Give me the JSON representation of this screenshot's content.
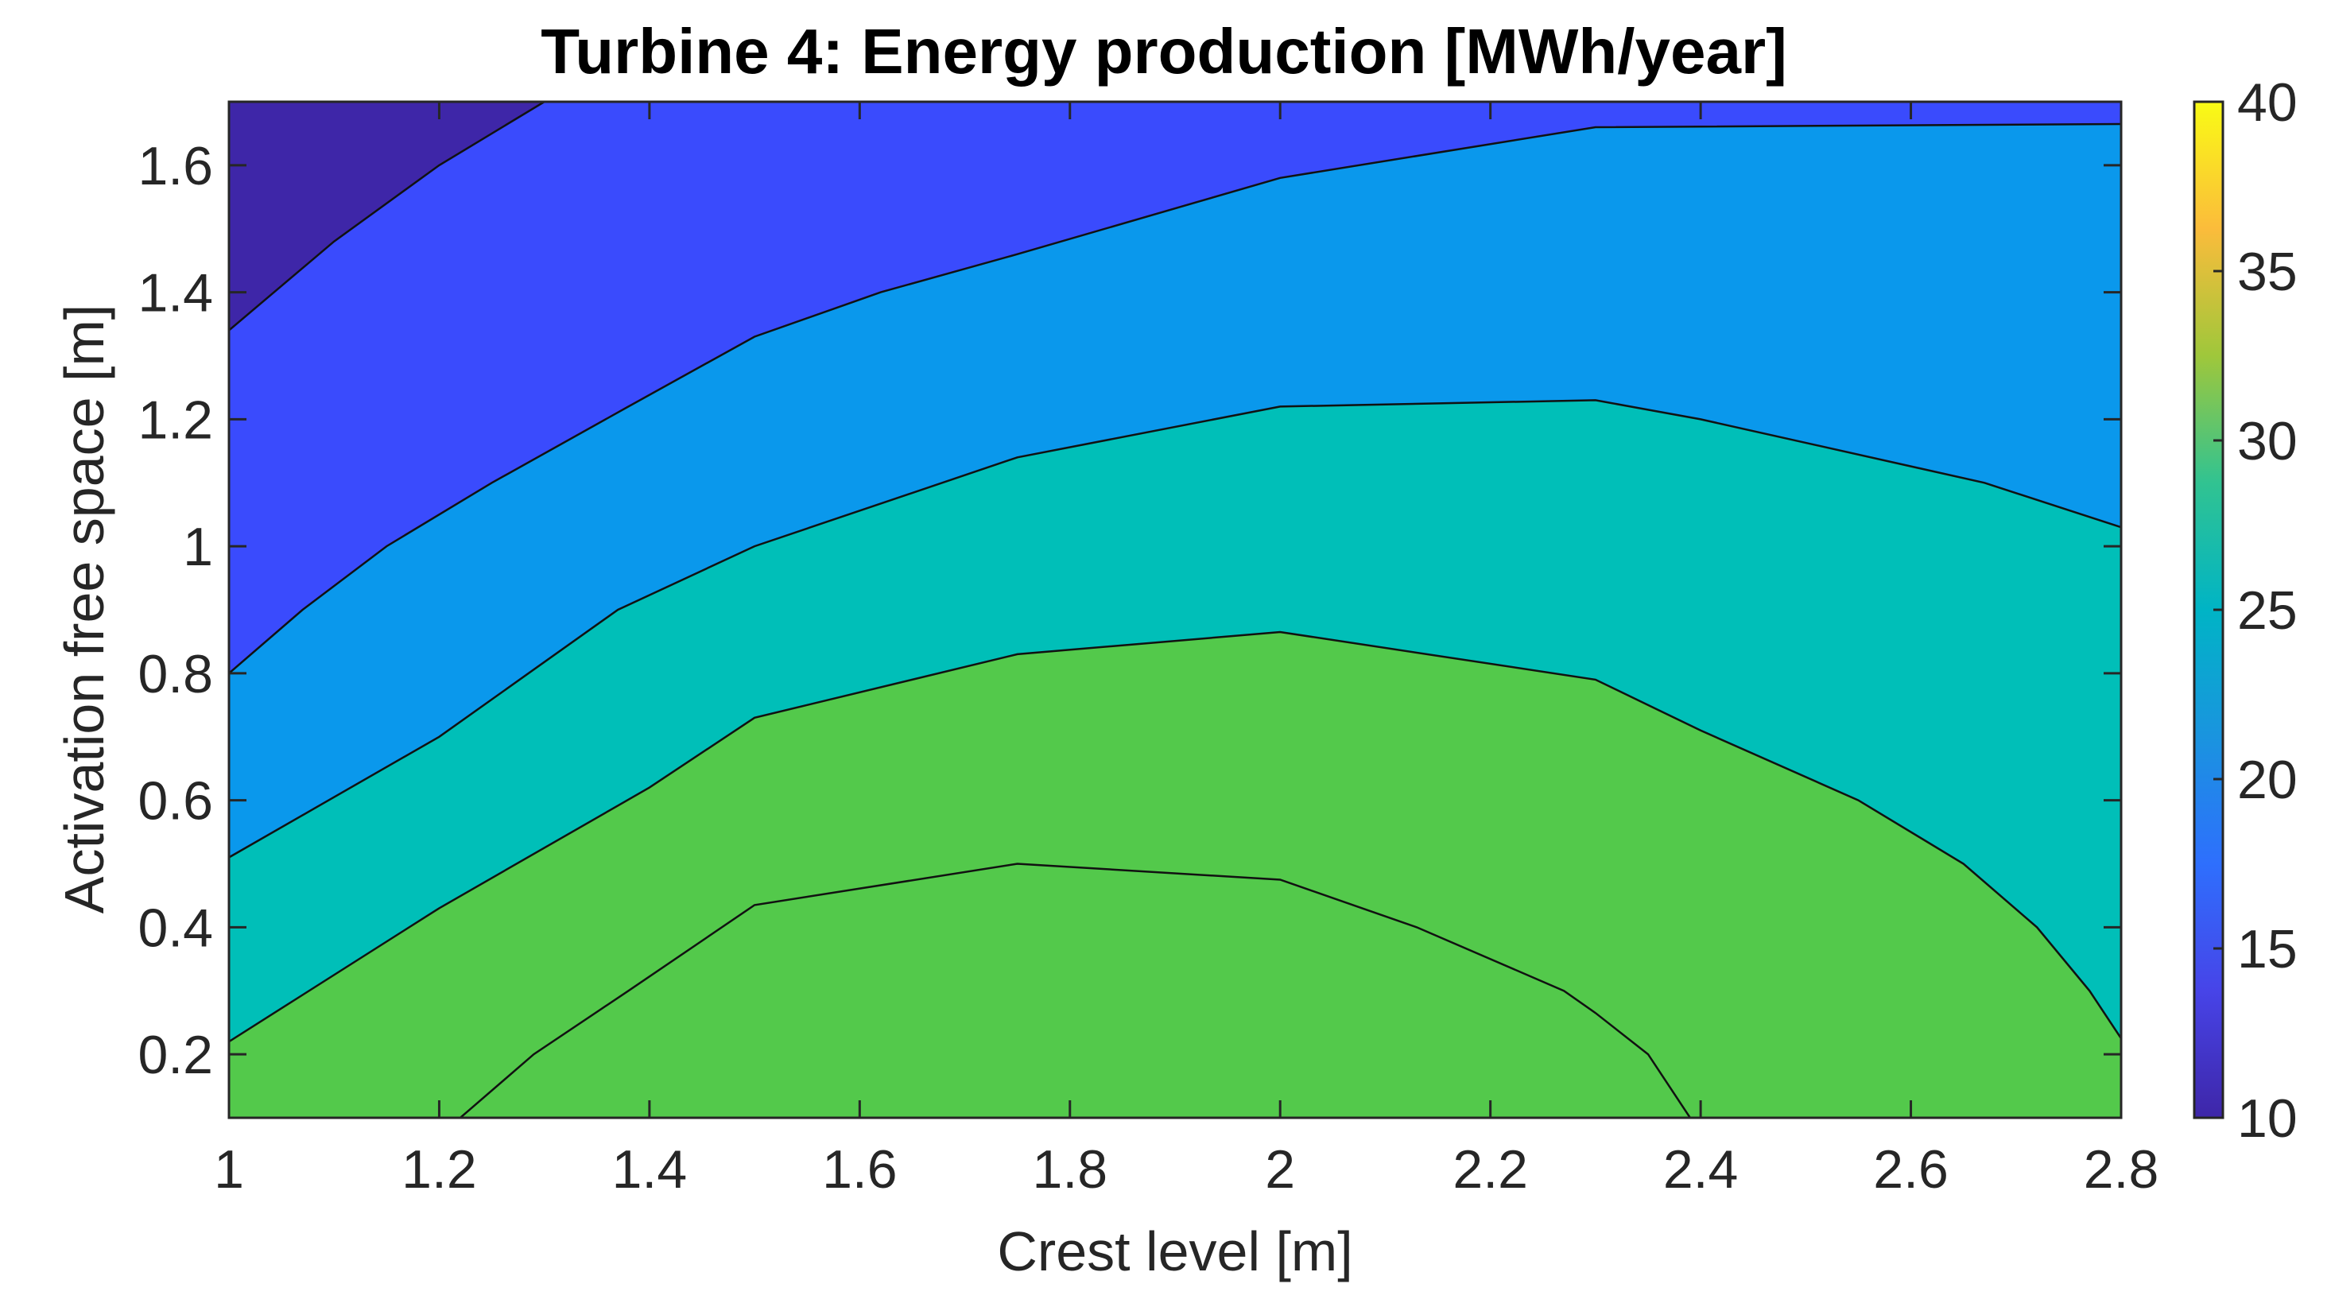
{
  "chart_data": {
    "type": "contour",
    "title": "Turbine 4: Energy production [MWh/year]",
    "xlabel": "Crest level [m]",
    "ylabel": "Activation free space [m]",
    "xlim": [
      1,
      2.8
    ],
    "ylim": [
      0.1,
      1.7
    ],
    "xticks": [
      "1",
      "1.2",
      "1.4",
      "1.6",
      "1.8",
      "2",
      "2.2",
      "2.4",
      "2.6",
      "2.8"
    ],
    "yticks": [
      "0.2",
      "0.4",
      "0.6",
      "0.8",
      "1",
      "1.2",
      "1.4",
      "1.6"
    ],
    "colorbar": {
      "range": [
        10,
        40
      ],
      "ticks": [
        "10",
        "15",
        "20",
        "25",
        "30",
        "35",
        "40"
      ],
      "colormap": "parula"
    },
    "grid": false,
    "levels": [
      10,
      12.5,
      15,
      20,
      25,
      30
    ],
    "level_colors": [
      "#3e26a8",
      "#3a4bfd",
      "#0a98ec",
      "#00bfb8",
      "#53c94b"
    ],
    "contours": [
      {
        "level": 12.5,
        "points": [
          [
            1.0,
            1.34
          ],
          [
            1.1,
            1.48
          ],
          [
            1.2,
            1.6
          ],
          [
            1.3,
            1.7
          ]
        ]
      },
      {
        "level": 15,
        "points": [
          [
            1.0,
            0.8
          ],
          [
            1.07,
            0.9
          ],
          [
            1.15,
            1.0
          ],
          [
            1.25,
            1.1
          ],
          [
            1.38,
            1.22
          ],
          [
            1.5,
            1.33
          ],
          [
            1.62,
            1.4
          ],
          [
            1.75,
            1.46
          ],
          [
            2.0,
            1.58
          ],
          [
            2.3,
            1.66
          ],
          [
            2.8,
            1.665
          ]
        ]
      },
      {
        "level": 20,
        "points": [
          [
            1.0,
            0.51
          ],
          [
            1.2,
            0.7
          ],
          [
            1.37,
            0.9
          ],
          [
            1.5,
            1.0
          ],
          [
            1.75,
            1.14
          ],
          [
            2.0,
            1.22
          ],
          [
            2.3,
            1.23
          ],
          [
            2.4,
            1.2
          ],
          [
            2.67,
            1.1
          ],
          [
            2.8,
            1.03
          ]
        ]
      },
      {
        "level": 25,
        "points": [
          [
            1.0,
            0.22
          ],
          [
            1.2,
            0.43
          ],
          [
            1.4,
            0.62
          ],
          [
            1.5,
            0.73
          ],
          [
            1.75,
            0.83
          ],
          [
            2.0,
            0.865
          ],
          [
            2.3,
            0.79
          ],
          [
            2.4,
            0.71
          ],
          [
            2.55,
            0.6
          ],
          [
            2.65,
            0.5
          ],
          [
            2.72,
            0.4
          ],
          [
            2.77,
            0.3
          ],
          [
            2.8,
            0.225
          ]
        ]
      },
      {
        "level": 30,
        "points": [
          [
            1.22,
            0.1
          ],
          [
            1.29,
            0.2
          ],
          [
            1.38,
            0.3
          ],
          [
            1.5,
            0.435
          ],
          [
            1.75,
            0.5
          ],
          [
            2.0,
            0.475
          ],
          [
            2.13,
            0.4
          ],
          [
            2.27,
            0.3
          ],
          [
            2.3,
            0.265
          ],
          [
            2.35,
            0.2
          ],
          [
            2.39,
            0.1
          ]
        ]
      }
    ]
  }
}
